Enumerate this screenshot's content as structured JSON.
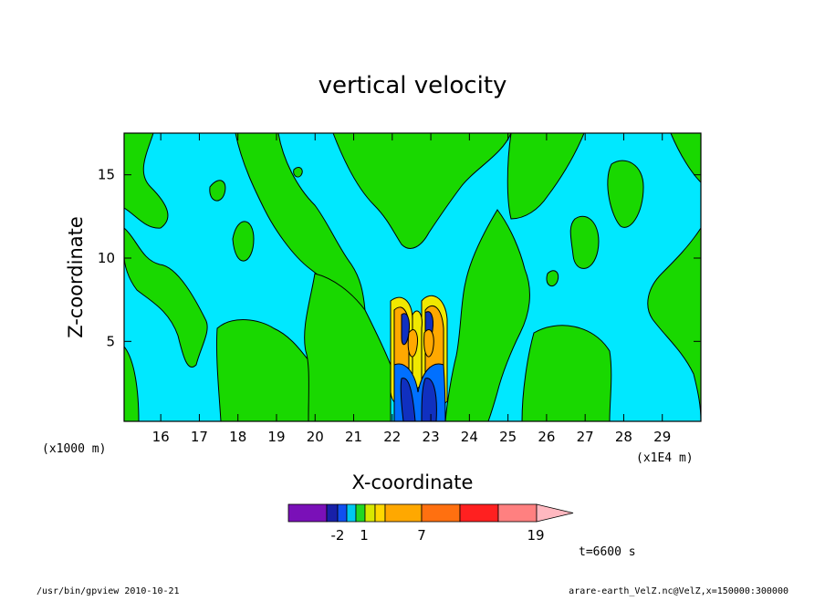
{
  "chart_data": {
    "type": "heatmap",
    "title": "vertical velocity",
    "xlabel": "X-coordinate",
    "ylabel": "Z-coordinate",
    "x_ticks": [
      "16",
      "17",
      "18",
      "19",
      "20",
      "21",
      "22",
      "23",
      "24",
      "25",
      "26",
      "27",
      "28",
      "29"
    ],
    "x_tick_values": [
      16,
      17,
      18,
      19,
      20,
      21,
      22,
      23,
      24,
      25,
      26,
      27,
      28,
      29
    ],
    "y_ticks": [
      "5",
      "10",
      "15"
    ],
    "y_tick_values": [
      5,
      10,
      15
    ],
    "xlim": [
      15.05,
      30.0
    ],
    "ylim": [
      0.2,
      17.5
    ],
    "x_unit": "(x1E4 m)",
    "y_unit": "(x1000 m)",
    "colors": {
      "background_field": "#00e8ff",
      "positive_weak": "#19d800",
      "yellow": "#f0e800",
      "orange": "#ffa800",
      "dark_blue": "#1030c0",
      "light_blue": "#0070ff"
    },
    "colorbar": {
      "labels": [
        "-2",
        "1",
        "7",
        "19"
      ],
      "colors": [
        "#7a10b8",
        "#1820a8",
        "#1050f0",
        "#00c8f0",
        "#22d822",
        "#d8e800",
        "#ffd800",
        "#ffa800",
        "#ff7010",
        "#ff2020",
        "#ff8080",
        "#ffb8c0"
      ]
    },
    "time_label": "t=6600 s"
  },
  "footer": {
    "left": "/usr/bin/gpview   2010-10-21",
    "right": "arare-earth_VelZ.nc@VelZ,x=150000:300000"
  }
}
